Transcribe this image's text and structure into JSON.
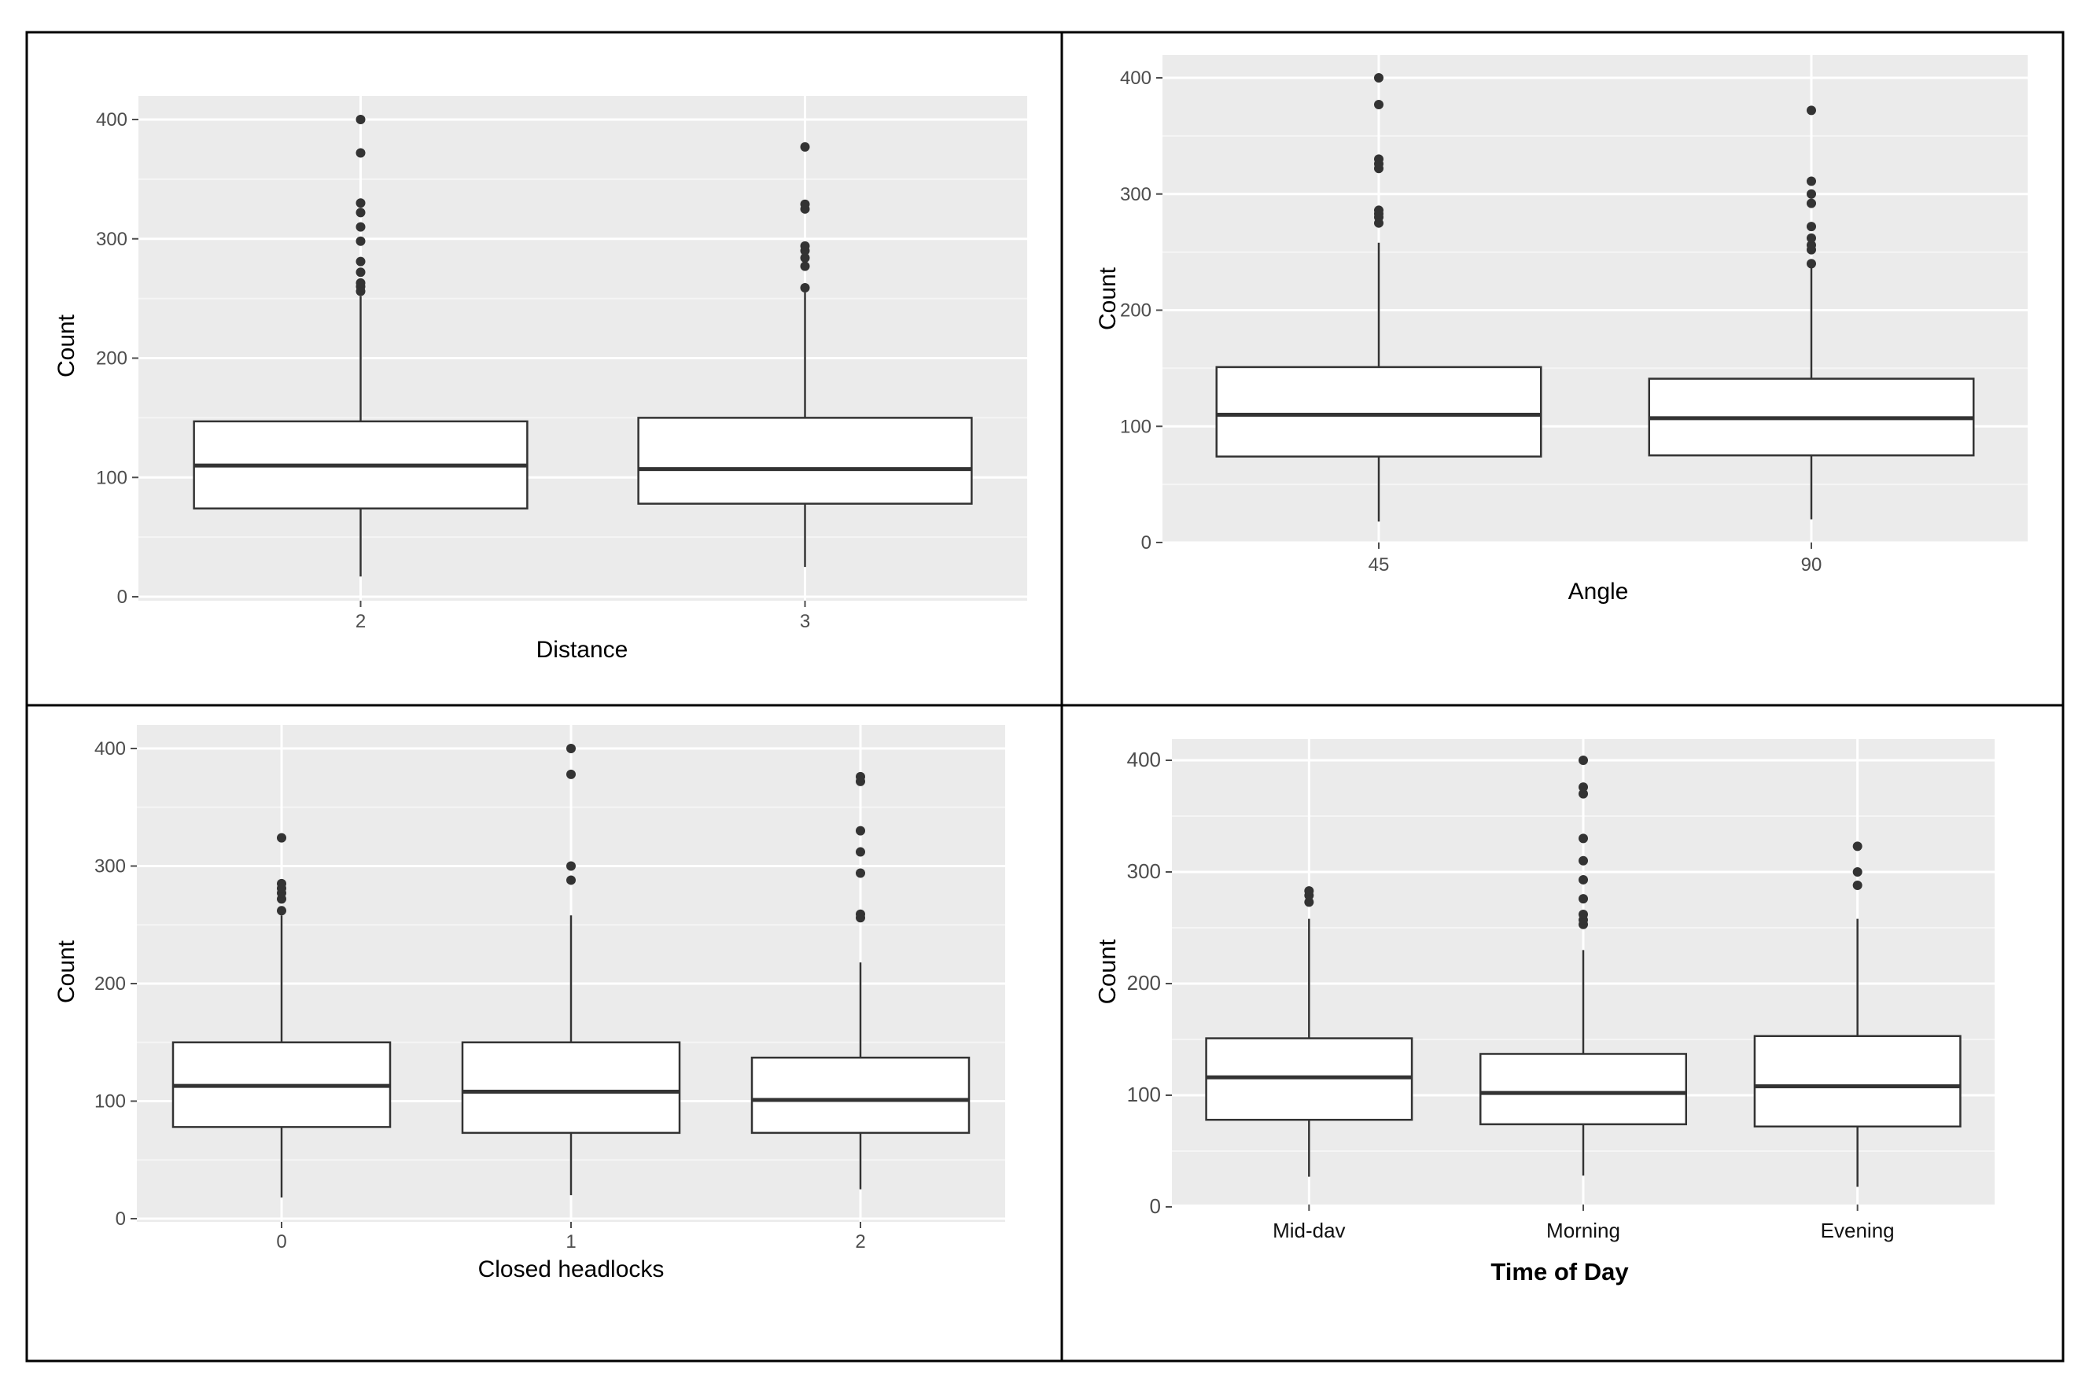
{
  "colors": {
    "panel_background": "#ebebeb",
    "grid_major": "#ffffff",
    "grid_minor": "#f5f5f5",
    "box_fill": "#ffffff",
    "box_line": "#333333",
    "outlier": "#333333",
    "tick_text": "#4d4d4d",
    "axis_title": "#000000",
    "frame": "#000000"
  },
  "chart_data": [
    {
      "type": "boxplot",
      "ylabel": "Count",
      "xlabel": "Distance",
      "ylim": [
        -5,
        405
      ],
      "yticks": [
        0,
        100,
        200,
        300,
        400
      ],
      "categories": [
        "2",
        "3"
      ],
      "boxes": [
        {
          "category": "2",
          "q1": 74,
          "median": 110,
          "q3": 147,
          "whisker_low": 17,
          "whisker_high": 252,
          "outliers": [
            256,
            260,
            263,
            272,
            281,
            298,
            310,
            322,
            330,
            372,
            400
          ]
        },
        {
          "category": "3",
          "q1": 78,
          "median": 107,
          "q3": 150,
          "whisker_low": 25,
          "whisker_high": 255,
          "outliers": [
            259,
            277,
            284,
            290,
            294,
            325,
            329,
            377
          ]
        }
      ]
    },
    {
      "type": "boxplot",
      "ylabel": "Count",
      "xlabel": "Angle",
      "ylim": [
        -5,
        405
      ],
      "yticks": [
        0,
        100,
        200,
        300,
        400
      ],
      "categories": [
        "45",
        "90"
      ],
      "boxes": [
        {
          "category": "45",
          "q1": 74,
          "median": 110,
          "q3": 151,
          "whisker_low": 18,
          "whisker_high": 258,
          "outliers": [
            275,
            280,
            283,
            286,
            322,
            326,
            330,
            377,
            400
          ]
        },
        {
          "category": "90",
          "q1": 75,
          "median": 107,
          "q3": 141,
          "whisker_low": 20,
          "whisker_high": 238,
          "outliers": [
            240,
            252,
            256,
            262,
            272,
            292,
            300,
            311,
            372
          ]
        }
      ]
    },
    {
      "type": "boxplot",
      "ylabel": "Count",
      "xlabel": "Closed headlocks",
      "ylim": [
        -5,
        405
      ],
      "yticks": [
        0,
        100,
        200,
        300,
        400
      ],
      "categories": [
        "0",
        "1",
        "2"
      ],
      "boxes": [
        {
          "category": "0",
          "q1": 78,
          "median": 113,
          "q3": 150,
          "whisker_low": 18,
          "whisker_high": 258,
          "outliers": [
            262,
            272,
            277,
            281,
            285,
            324
          ]
        },
        {
          "category": "1",
          "q1": 73,
          "median": 108,
          "q3": 150,
          "whisker_low": 20,
          "whisker_high": 258,
          "outliers": [
            288,
            300,
            378,
            400
          ]
        },
        {
          "category": "2",
          "q1": 73,
          "median": 101,
          "q3": 137,
          "whisker_low": 25,
          "whisker_high": 218,
          "outliers": [
            256,
            259,
            294,
            312,
            330,
            372,
            376
          ]
        }
      ]
    },
    {
      "type": "boxplot",
      "ylabel": "Count",
      "xlabel": "Time of Day",
      "ylim": [
        -5,
        405
      ],
      "yticks": [
        0,
        100,
        200,
        300,
        400
      ],
      "categories": [
        "Mid-dav",
        "Morning",
        "Evening"
      ],
      "boxes": [
        {
          "category": "Mid-dav",
          "q1": 78,
          "median": 116,
          "q3": 151,
          "whisker_low": 27,
          "whisker_high": 258,
          "outliers": [
            273,
            279,
            283
          ]
        },
        {
          "category": "Morning",
          "q1": 74,
          "median": 102,
          "q3": 137,
          "whisker_low": 28,
          "whisker_high": 230,
          "outliers": [
            253,
            257,
            262,
            276,
            293,
            310,
            330,
            370,
            376,
            400
          ]
        },
        {
          "category": "Evening",
          "q1": 72,
          "median": 108,
          "q3": 153,
          "whisker_low": 18,
          "whisker_high": 258,
          "outliers": [
            288,
            300,
            323
          ]
        }
      ]
    }
  ]
}
